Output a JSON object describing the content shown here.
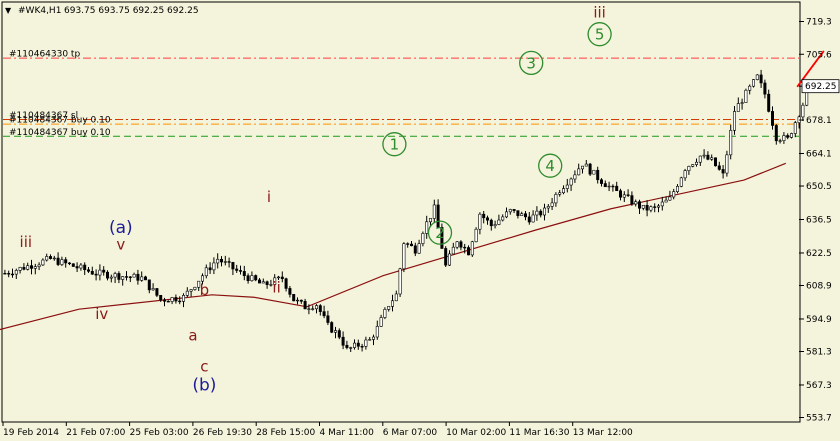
{
  "header": {
    "symbol": "#WK4,H1",
    "ohlc": "693.75 693.75 692.25 692.25"
  },
  "chart_data": {
    "type": "candlestick",
    "symbol": "WK4",
    "timeframe": "H1",
    "ylim": [
      553.7,
      725.0
    ],
    "y_ticks": [
      719.3,
      705.6,
      692.25,
      678.1,
      664.1,
      650.5,
      636.5,
      622.5,
      608.9,
      594.9,
      581.3,
      567.3,
      553.7
    ],
    "y_tick_labels": [
      "719.3",
      "705.6",
      "692.25",
      "678.1",
      "664.1",
      "650.5",
      "636.5",
      "622.5",
      "608.9",
      "594.9",
      "581.3",
      "567.3",
      "553.7"
    ],
    "current_price": 692.25,
    "current_price_label": "692.25",
    "x_labels": [
      "19 Feb 2014",
      "21 Feb 07:00",
      "25 Feb 03:00",
      "26 Feb 19:30",
      "28 Feb 15:00",
      "4 Mar 11:00",
      "6 Mar 07:00",
      "10 Mar 02:00",
      "11 Mar 16:30",
      "13 Mar 12:00"
    ],
    "bars": 212,
    "close_path": [
      [
        0,
        614
      ],
      [
        6,
        617
      ],
      [
        12,
        620
      ],
      [
        18,
        617
      ],
      [
        24,
        614
      ],
      [
        30,
        613
      ],
      [
        36,
        612
      ],
      [
        41,
        603
      ],
      [
        47,
        604
      ],
      [
        53,
        615
      ],
      [
        56,
        620
      ],
      [
        62,
        614
      ],
      [
        68,
        609
      ],
      [
        73,
        612
      ],
      [
        76,
        603
      ],
      [
        79,
        600
      ],
      [
        82,
        601
      ],
      [
        85,
        592
      ],
      [
        88,
        588
      ],
      [
        90,
        582
      ],
      [
        93,
        584
      ],
      [
        96,
        586
      ],
      [
        98,
        591
      ],
      [
        101,
        601
      ],
      [
        103,
        605
      ],
      [
        105,
        627
      ],
      [
        108,
        624
      ],
      [
        110,
        632
      ],
      [
        113,
        641
      ],
      [
        116,
        617
      ],
      [
        119,
        628
      ],
      [
        122,
        623
      ],
      [
        125,
        639
      ],
      [
        128,
        634
      ],
      [
        133,
        640
      ],
      [
        138,
        637
      ],
      [
        142,
        640
      ],
      [
        146,
        649
      ],
      [
        150,
        656
      ],
      [
        152,
        660
      ],
      [
        156,
        654
      ],
      [
        160,
        649
      ],
      [
        164,
        645
      ],
      [
        168,
        641
      ],
      [
        171,
        641
      ],
      [
        175,
        645
      ],
      [
        179,
        658
      ],
      [
        183,
        663
      ],
      [
        186,
        661
      ],
      [
        189,
        655
      ],
      [
        192,
        682
      ],
      [
        195,
        689
      ],
      [
        198,
        696
      ],
      [
        200,
        689
      ],
      [
        203,
        671
      ],
      [
        206,
        670
      ],
      [
        209,
        681
      ],
      [
        212,
        692.25
      ]
    ],
    "moving_average": [
      [
        -2,
        590
      ],
      [
        20,
        599
      ],
      [
        55,
        605
      ],
      [
        66,
        604
      ],
      [
        80,
        600
      ],
      [
        100,
        613
      ],
      [
        140,
        632
      ],
      [
        160,
        641
      ],
      [
        195,
        653
      ],
      [
        206,
        660
      ]
    ],
    "projection": [
      [
        209,
        692
      ],
      [
        216,
        707
      ]
    ],
    "orders": [
      {
        "label": "#110464330 tp",
        "price": 704.0,
        "color": "#ff3b3b",
        "style": "dash-dot"
      },
      {
        "label": "#110484367 sl",
        "price": 678.3,
        "color": "#d23c00",
        "style": "dash-dot"
      },
      {
        "label": "#110484367 buy 0.10",
        "price": 676.4,
        "color": "#ff9000",
        "style": "dash-dot"
      },
      {
        "label": "#110484367 buy 0.10",
        "price": 671.3,
        "color": "#1c9a1c",
        "style": "dash"
      }
    ],
    "wave_labels": [
      {
        "text": "iii",
        "bar": 6,
        "price": 627,
        "color": "#8b1a1a",
        "circled": false
      },
      {
        "text": "(a)",
        "bar": 31,
        "price": 633,
        "color": "#1c1c9a",
        "circled": false
      },
      {
        "text": "v",
        "bar": 31,
        "price": 626,
        "color": "#8b1a1a",
        "circled": false
      },
      {
        "text": "iv",
        "bar": 26,
        "price": 597,
        "color": "#8b1a1a",
        "circled": false
      },
      {
        "text": "b",
        "bar": 53,
        "price": 607,
        "color": "#8b1a1a",
        "circled": false
      },
      {
        "text": "a",
        "bar": 50,
        "price": 588,
        "color": "#8b1a1a",
        "circled": false
      },
      {
        "text": "c",
        "bar": 53,
        "price": 575,
        "color": "#8b1a1a",
        "circled": false
      },
      {
        "text": "(b)",
        "bar": 53,
        "price": 567,
        "color": "#1c1c9a",
        "circled": false
      },
      {
        "text": "i",
        "bar": 70,
        "price": 646,
        "color": "#8b1a1a",
        "circled": false
      },
      {
        "text": "ii",
        "bar": 72,
        "price": 608,
        "color": "#8b1a1a",
        "circled": false
      },
      {
        "text": "1",
        "bar": 103,
        "price": 668,
        "color": "#2e8b2e",
        "circled": true
      },
      {
        "text": "2",
        "bar": 115,
        "price": 631,
        "color": "#2e8b2e",
        "circled": true
      },
      {
        "text": "3",
        "bar": 139,
        "price": 702,
        "color": "#2e8b2e",
        "circled": true
      },
      {
        "text": "4",
        "bar": 144,
        "price": 659,
        "color": "#2e8b2e",
        "circled": true
      },
      {
        "text": "5",
        "bar": 157,
        "price": 714,
        "color": "#2e8b2e",
        "circled": true
      },
      {
        "text": "iii",
        "bar": 157,
        "price": 723,
        "color": "#8b1a1a",
        "circled": false
      }
    ]
  },
  "colors": {
    "background": "#f4f4dc",
    "candle": "#000000",
    "moving_average": "#8b1010",
    "projection": "#ff0000"
  }
}
